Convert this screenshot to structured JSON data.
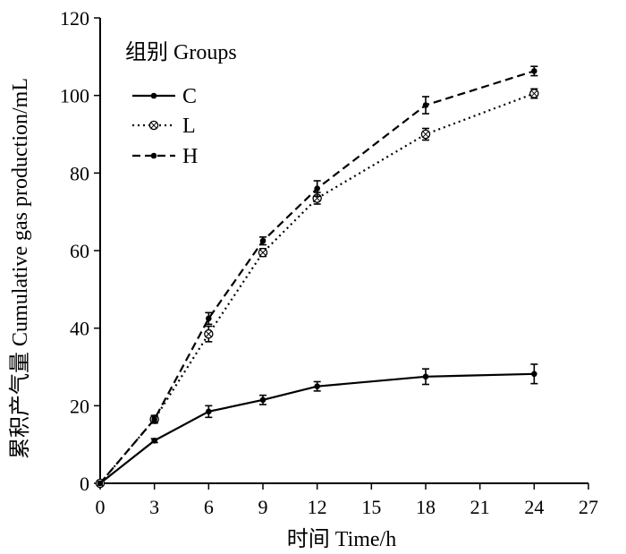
{
  "chart_data": {
    "type": "line",
    "xlabel": "时间 Time/h",
    "ylabel": "累积产气量 Cumulative gas production/mL",
    "xlim": [
      0,
      27
    ],
    "ylim": [
      0,
      120
    ],
    "xticks": [
      0,
      3,
      6,
      9,
      12,
      15,
      18,
      21,
      24,
      27
    ],
    "yticks": [
      0,
      20,
      40,
      60,
      80,
      100,
      120
    ],
    "grid": false,
    "legend": {
      "title": "组别 Groups",
      "placement": "top-left"
    },
    "series": [
      {
        "name": "C",
        "style": "solid",
        "marker": "dot",
        "x": [
          0,
          3,
          6,
          9,
          12,
          18,
          24
        ],
        "y": [
          0,
          11,
          18.5,
          21.5,
          25,
          27.5,
          28.2
        ],
        "err": [
          0,
          0.5,
          1.5,
          1.2,
          1.2,
          2,
          2.5
        ]
      },
      {
        "name": "L",
        "style": "dotted",
        "marker": "circle-cross",
        "x": [
          0,
          3,
          6,
          9,
          12,
          18,
          24
        ],
        "y": [
          0,
          16.5,
          38.5,
          59.5,
          73.5,
          90,
          100.5
        ],
        "err": [
          0,
          1,
          2,
          1,
          1.5,
          1.5,
          1.2
        ]
      },
      {
        "name": "H",
        "style": "dashed",
        "marker": "dot",
        "x": [
          0,
          3,
          6,
          9,
          12,
          18,
          24
        ],
        "y": [
          0,
          16.5,
          42.5,
          62.5,
          76,
          97.5,
          106.3
        ],
        "err": [
          0,
          0.8,
          1.5,
          1,
          2,
          2.2,
          1.2
        ]
      }
    ]
  }
}
